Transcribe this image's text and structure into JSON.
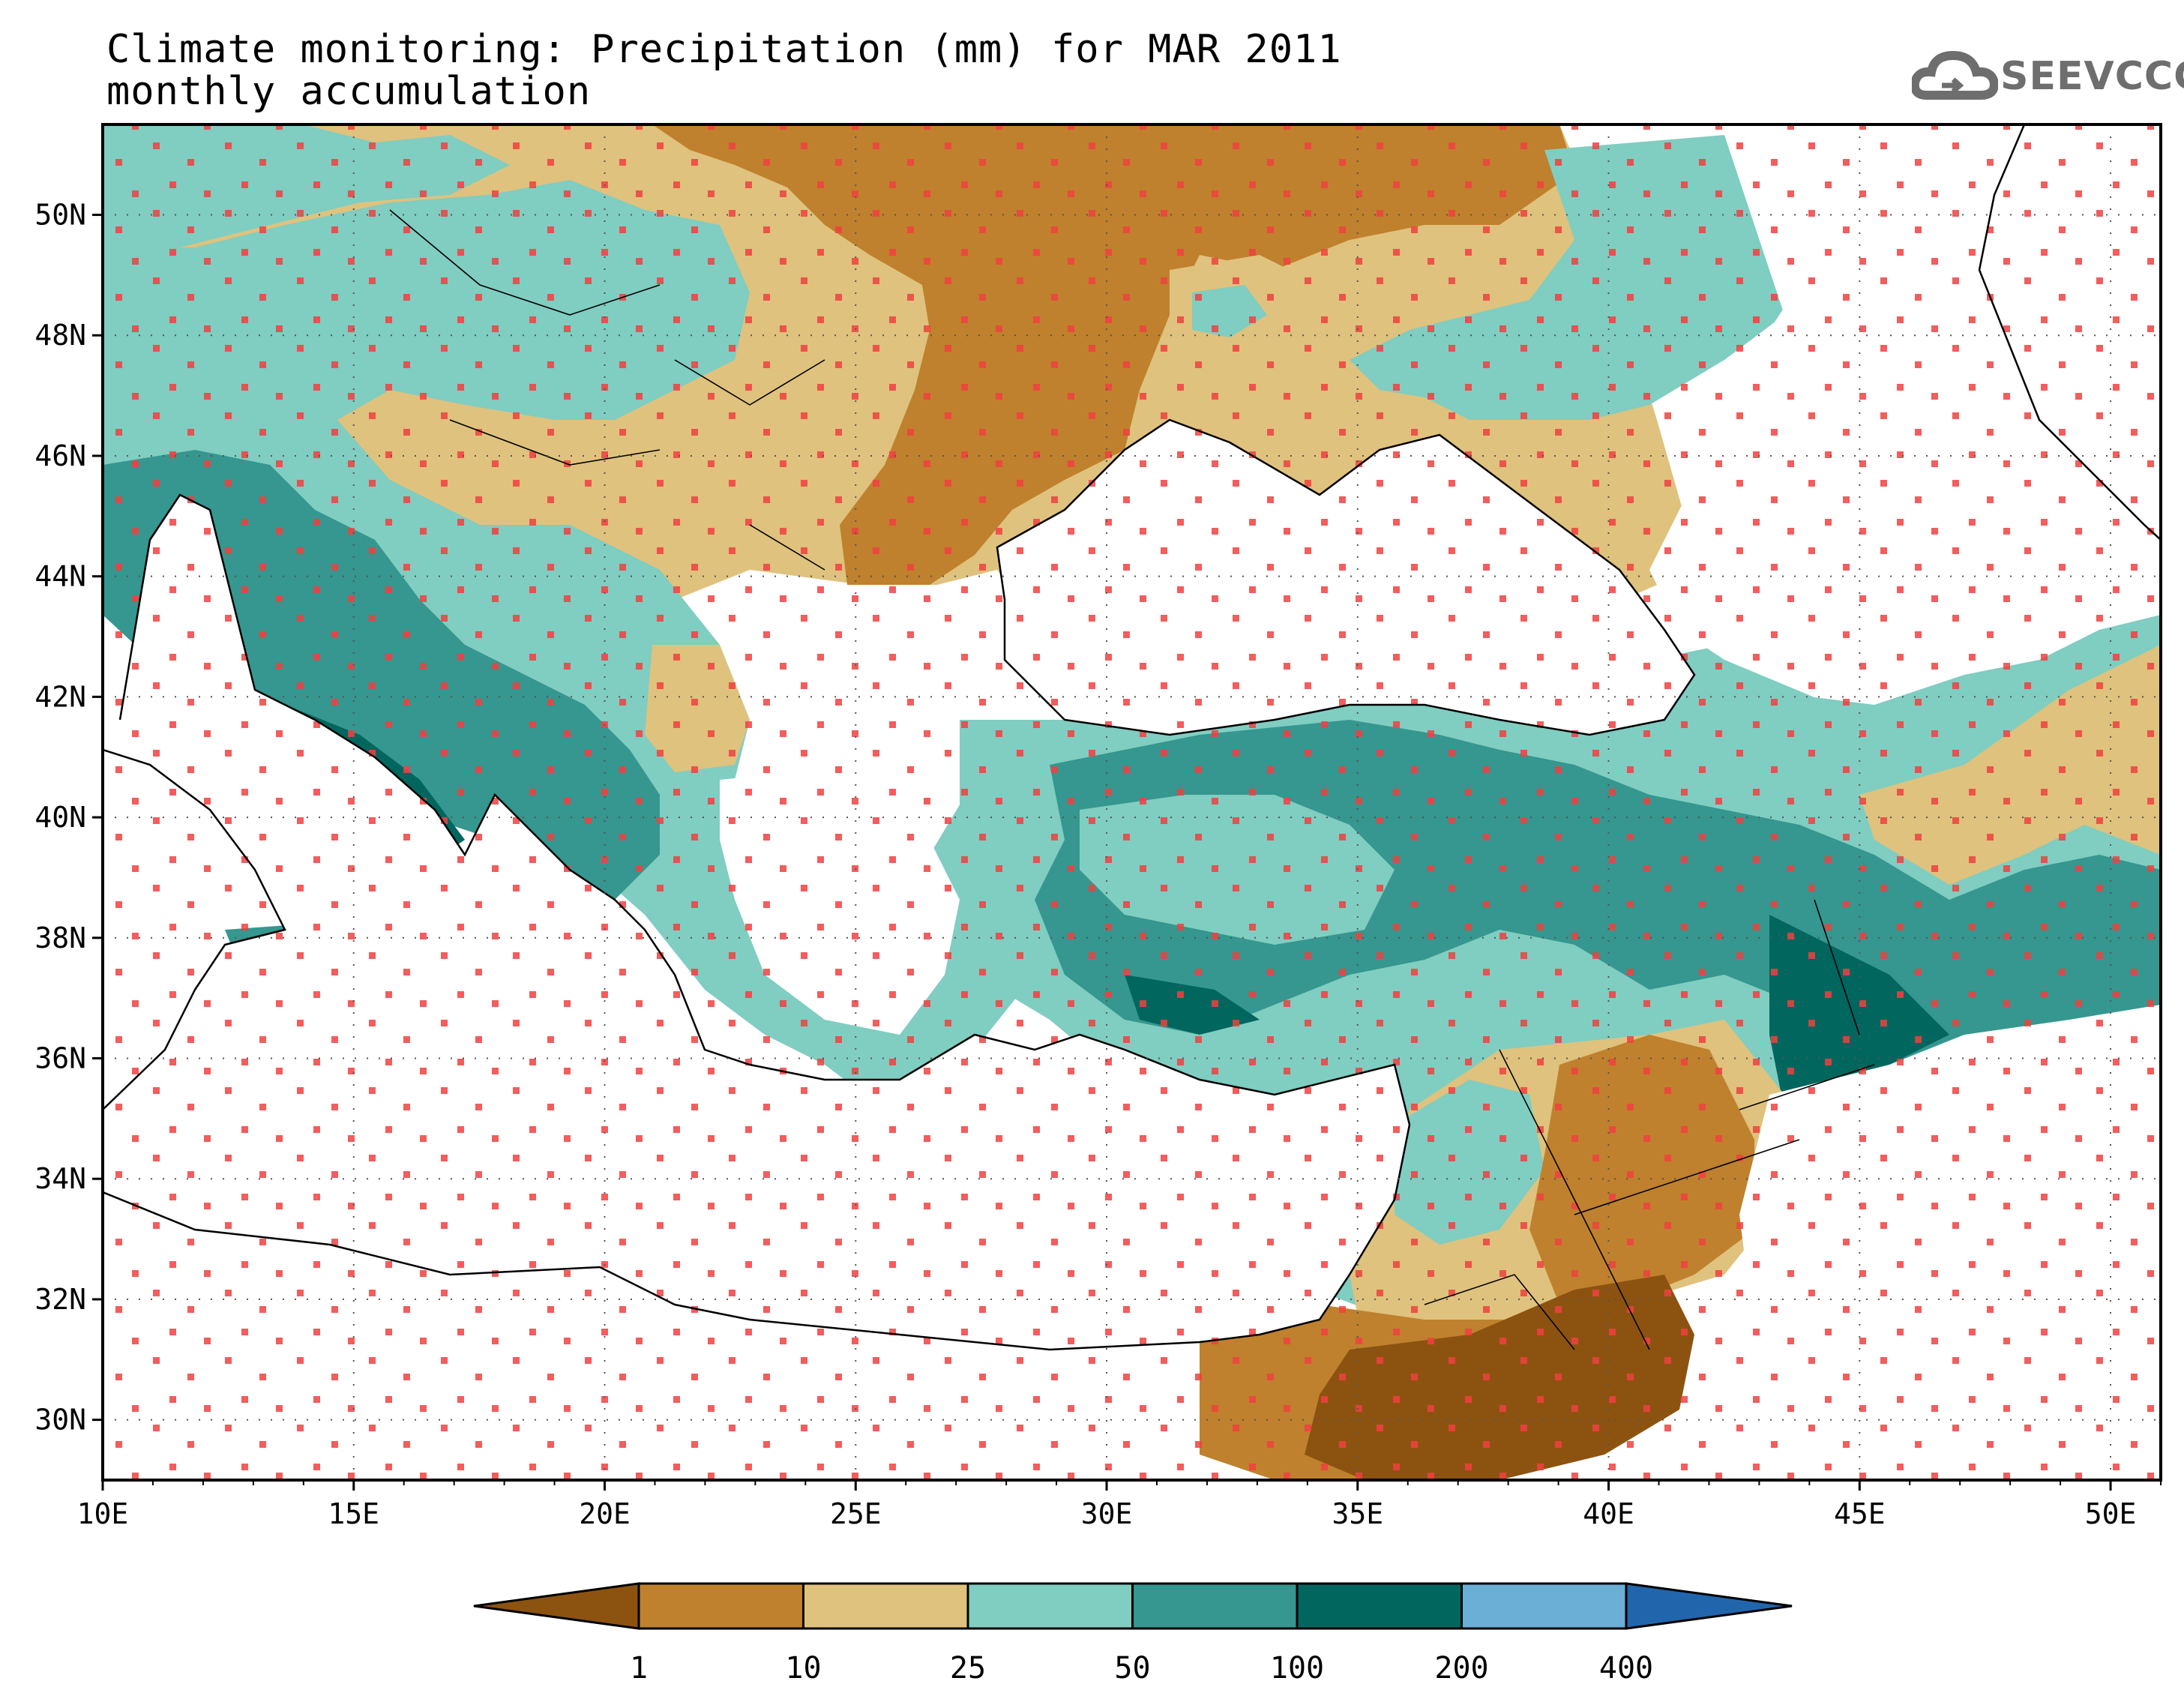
{
  "title": {
    "line1": "Climate monitoring: Precipitation (mm) for MAR 2011",
    "line2": "monthly accumulation"
  },
  "logo": {
    "text": "SEEVCCC",
    "icon": "cloud-icon",
    "color": "#6e6e6e"
  },
  "map": {
    "lon_range": [
      10,
      51
    ],
    "lat_range": [
      29,
      51.5
    ],
    "x_ticks": [
      "10E",
      "15E",
      "20E",
      "25E",
      "30E",
      "35E",
      "40E",
      "45E",
      "50E"
    ],
    "y_ticks": [
      "30N",
      "32N",
      "34N",
      "36N",
      "38N",
      "40N",
      "42N",
      "44N",
      "46N",
      "48N",
      "50N"
    ],
    "grid": "dotted",
    "station_marker_color": "#f04040"
  },
  "colorbar": {
    "boundaries": [
      "1",
      "10",
      "25",
      "50",
      "100",
      "200",
      "400"
    ],
    "colors": {
      "below_1": "#8c5310",
      "1_10": "#bf812d",
      "10_25": "#dfc27d",
      "25_50": "#80cdc1",
      "50_100": "#35978f",
      "100_200": "#01665e",
      "200_400": "#6baed6",
      "above_400": "#2166ac"
    }
  }
}
